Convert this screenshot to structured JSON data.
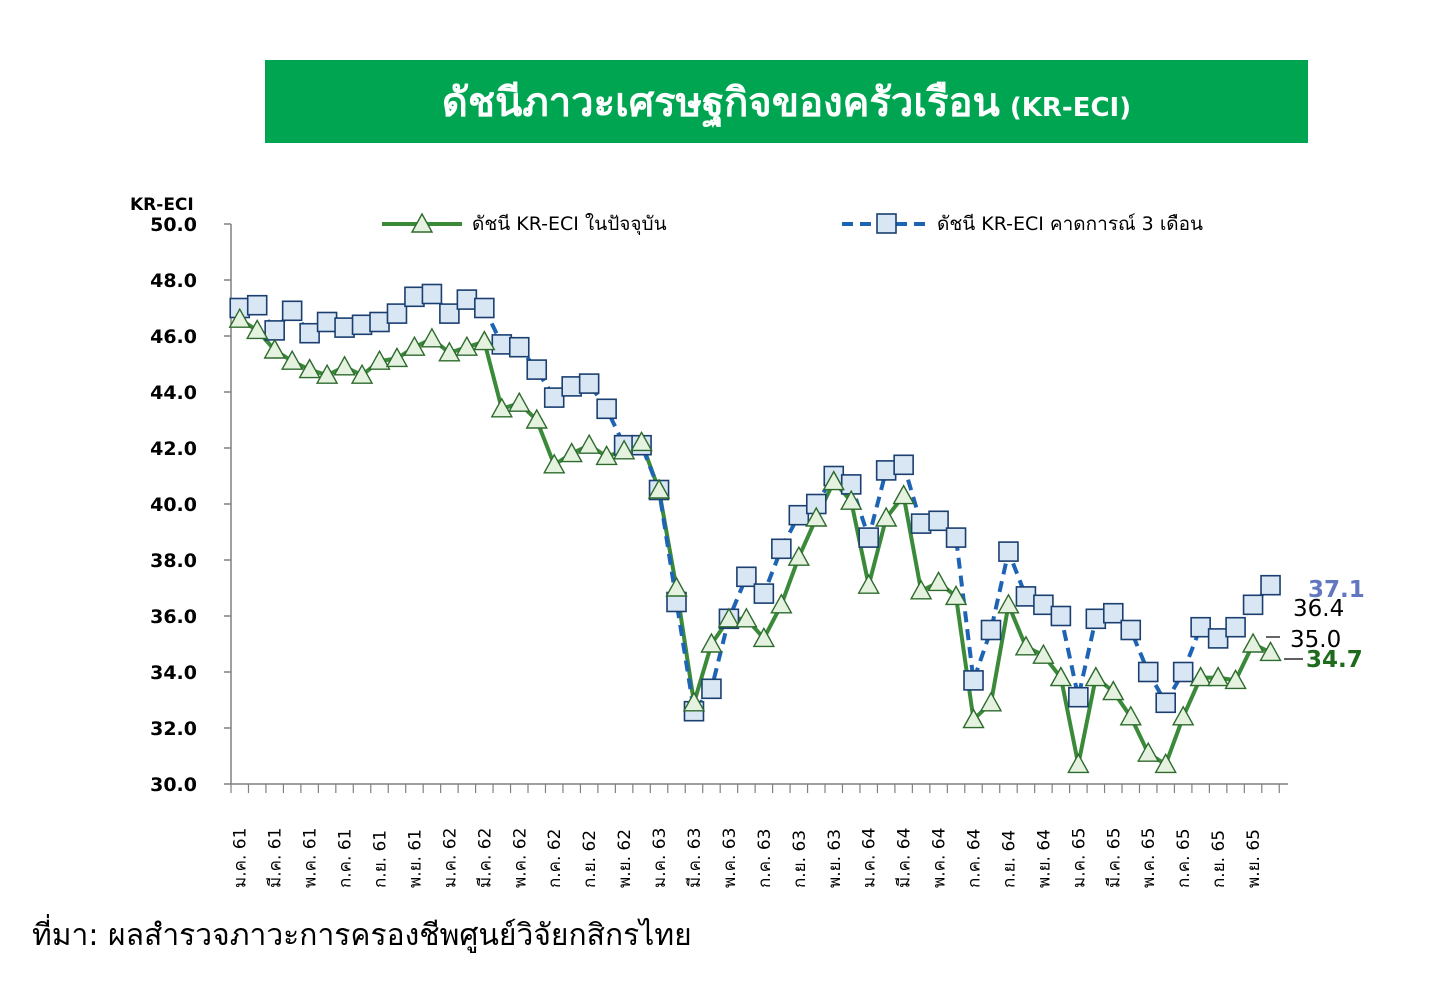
{
  "banner": {
    "title": "ดัชนีภาวะเศรษฐกิจของครัวเรือน",
    "subtitle": "(KR-ECI)"
  },
  "source": "ที่มา: ผลสำรวจภาวะการครองชีพศูนย์วิจัยกสิกรไทย",
  "colors": {
    "banner": "#00a551",
    "current": "#3a8a3a",
    "expected": "#1e64b4",
    "marker_current": "#e4f2df",
    "marker_expected": "#d9e6f4",
    "label_current": "#1e6b1e",
    "label_expected": "#6277c0"
  },
  "chart_data": {
    "type": "line",
    "ylabel": "KR-ECI",
    "ylim": [
      30.0,
      50.0
    ],
    "yticks": [
      "30.0",
      "32.0",
      "34.0",
      "36.0",
      "38.0",
      "40.0",
      "42.0",
      "44.0",
      "46.0",
      "48.0",
      "50.0"
    ],
    "xtick_labels": [
      "ม.ค. 61",
      "มี.ค. 61",
      "พ.ค. 61",
      "ก.ค. 61",
      "ก.ย. 61",
      "พ.ย. 61",
      "ม.ค. 62",
      "มี.ค. 62",
      "พ.ค. 62",
      "ก.ค. 62",
      "ก.ย. 62",
      "พ.ย. 62",
      "ม.ค. 63",
      "มี.ค. 63",
      "พ.ค. 63",
      "ก.ค. 63",
      "ก.ย. 63",
      "พ.ย. 63",
      "ม.ค. 64",
      "มี.ค. 64",
      "พ.ค. 64",
      "ก.ค. 64",
      "ก.ย. 64",
      "พ.ย. 64",
      "ม.ค. 65",
      "มี.ค. 65",
      "พ.ค. 65",
      "ก.ค. 65",
      "ก.ย. 65",
      "พ.ย. 65"
    ],
    "series": [
      {
        "name": "ดัชนี KR-ECI ในปัจจุบัน",
        "values": [
          46.6,
          46.2,
          45.5,
          45.1,
          44.8,
          44.6,
          44.9,
          44.6,
          45.1,
          45.2,
          45.6,
          45.9,
          45.4,
          45.6,
          45.8,
          43.4,
          43.6,
          43.0,
          41.4,
          41.8,
          42.1,
          41.7,
          41.9,
          42.2,
          40.5,
          37.0,
          32.9,
          35.0,
          35.9,
          35.9,
          35.2,
          36.4,
          38.1,
          39.5,
          40.8,
          40.1,
          37.1,
          39.5,
          40.3,
          36.9,
          37.2,
          36.7,
          32.3,
          32.9,
          36.4,
          34.9,
          34.6,
          33.8,
          30.7,
          33.8,
          33.3,
          32.4,
          31.1,
          30.7,
          32.4,
          33.8,
          33.8,
          33.7,
          35.0,
          34.7
        ]
      },
      {
        "name": "ดัชนี KR-ECI คาดการณ์ 3 เดือน",
        "values": [
          47.0,
          47.1,
          46.2,
          46.9,
          46.1,
          46.5,
          46.3,
          46.4,
          46.5,
          46.8,
          47.4,
          47.5,
          46.8,
          47.3,
          47.0,
          45.7,
          45.6,
          44.8,
          43.8,
          44.2,
          44.3,
          43.4,
          42.1,
          42.1,
          40.5,
          36.5,
          32.6,
          33.4,
          35.9,
          37.4,
          36.8,
          38.4,
          39.6,
          40.0,
          41.0,
          40.7,
          38.8,
          41.2,
          41.4,
          39.3,
          39.4,
          38.8,
          33.7,
          35.5,
          38.3,
          36.7,
          36.4,
          36.0,
          33.1,
          35.9,
          36.1,
          35.5,
          34.0,
          32.9,
          34.0,
          35.6,
          35.2,
          35.6,
          36.4,
          37.1
        ]
      }
    ],
    "end_labels": [
      {
        "text": "37.1",
        "series": "expected"
      },
      {
        "text": "36.4",
        "series": "expected_prev"
      },
      {
        "text": "35.0",
        "series": "current_prev"
      },
      {
        "text": "34.7",
        "series": "current"
      }
    ]
  }
}
